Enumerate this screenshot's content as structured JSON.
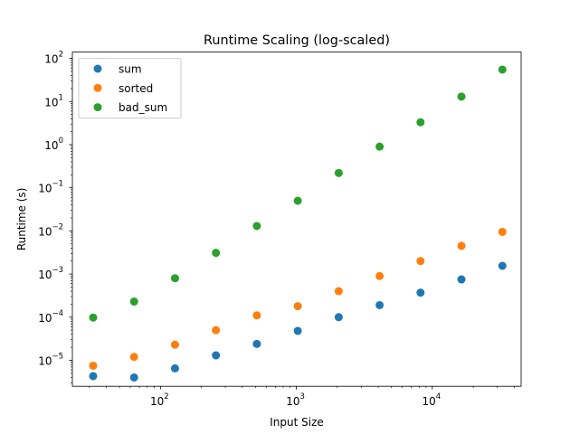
{
  "chart_data": {
    "type": "scatter",
    "title": "Runtime Scaling (log-scaled)",
    "xlabel": "Input Size",
    "ylabel": "Runtime (s)",
    "xscale": "log",
    "yscale": "log",
    "xlim": [
      22.5,
      45000
    ],
    "ylim": [
      2.5e-06,
      140
    ],
    "grid": false,
    "legend_position": "top-left",
    "x_ticks": [
      {
        "base": "10",
        "exp": "2",
        "value": 100
      },
      {
        "base": "10",
        "exp": "3",
        "value": 1000
      },
      {
        "base": "10",
        "exp": "4",
        "value": 10000
      }
    ],
    "y_ticks": [
      {
        "base": "10",
        "exp": "−5",
        "value": 1e-05
      },
      {
        "base": "10",
        "exp": "−4",
        "value": 0.0001
      },
      {
        "base": "10",
        "exp": "−3",
        "value": 0.001
      },
      {
        "base": "10",
        "exp": "−2",
        "value": 0.01
      },
      {
        "base": "10",
        "exp": "−1",
        "value": 0.1
      },
      {
        "base": "10",
        "exp": "0",
        "value": 1
      },
      {
        "base": "10",
        "exp": "1",
        "value": 10
      },
      {
        "base": "10",
        "exp": "2",
        "value": 100
      }
    ],
    "x": [
      32,
      64,
      128,
      256,
      512,
      1024,
      2048,
      4096,
      8192,
      16384,
      32768
    ],
    "series": [
      {
        "name": "sum",
        "color": "#1f77b4",
        "values": [
          4.3e-06,
          4e-06,
          6.5e-06,
          1.3e-05,
          2.4e-05,
          4.8e-05,
          0.0001,
          0.00019,
          0.00037,
          0.00075,
          0.00155
        ]
      },
      {
        "name": "sorted",
        "color": "#ff7f0e",
        "values": [
          7.5e-06,
          1.2e-05,
          2.3e-05,
          5e-05,
          0.00011,
          0.00018,
          0.0004,
          0.0009,
          0.002,
          0.0045,
          0.0095
        ]
      },
      {
        "name": "bad_sum",
        "color": "#2ca02c",
        "values": [
          9.8e-05,
          0.00023,
          0.0008,
          0.0031,
          0.013,
          0.05,
          0.22,
          0.9,
          3.3,
          13,
          55
        ]
      }
    ]
  }
}
